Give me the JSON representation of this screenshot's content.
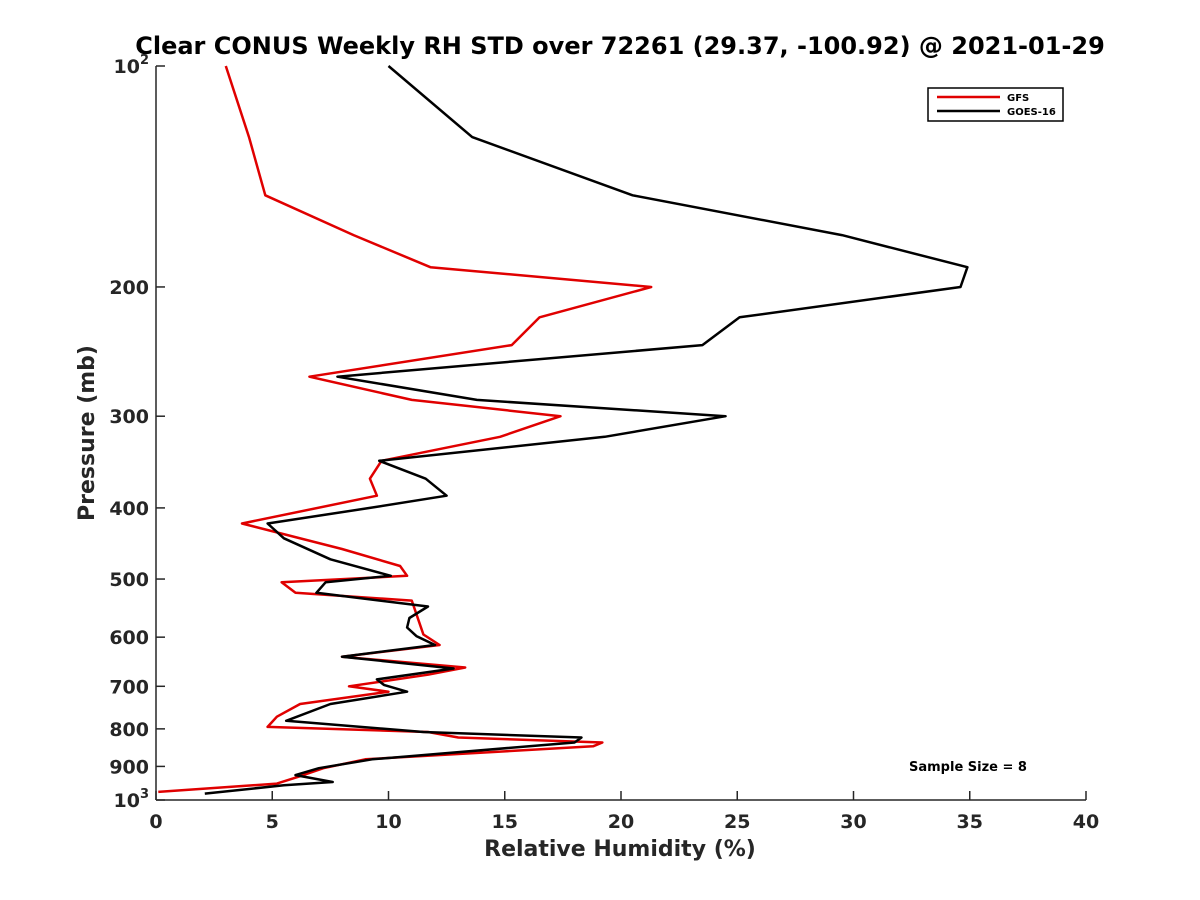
{
  "chart_data": {
    "type": "line",
    "title": "Clear CONUS Weekly RH STD over 72261 (29.37, -100.92) @ 2021-01-29",
    "xlabel": "Relative Humidity (%)",
    "ylabel": "Pressure (mb)",
    "xlim": [
      0,
      40
    ],
    "ylim": [
      100,
      1000
    ],
    "y_scale": "log",
    "y_reversed": true,
    "x_ticks": [
      "0",
      "5",
      "10",
      "15",
      "20",
      "25",
      "30",
      "35",
      "40"
    ],
    "y_ticks": [
      {
        "value": 100,
        "base": "10",
        "exp": "2"
      },
      {
        "value": 200,
        "label": "200"
      },
      {
        "value": 300,
        "label": "300"
      },
      {
        "value": 400,
        "label": "400"
      },
      {
        "value": 500,
        "label": "500"
      },
      {
        "value": 600,
        "label": "600"
      },
      {
        "value": 700,
        "label": "700"
      },
      {
        "value": 800,
        "label": "800"
      },
      {
        "value": 900,
        "label": "900"
      },
      {
        "value": 1000,
        "base": "10",
        "exp": "3"
      }
    ],
    "legend_position": "top-right",
    "annotation": "Sample Size = 8",
    "series": [
      {
        "name": "GFS",
        "color": "#e00000",
        "points": [
          [
            3.0,
            100
          ],
          [
            4.0,
            125
          ],
          [
            4.7,
            150
          ],
          [
            8.5,
            170
          ],
          [
            11.8,
            188
          ],
          [
            21.3,
            200
          ],
          [
            16.5,
            220
          ],
          [
            15.3,
            240
          ],
          [
            6.6,
            265
          ],
          [
            11.0,
            285
          ],
          [
            17.4,
            300
          ],
          [
            14.8,
            320
          ],
          [
            9.7,
            345
          ],
          [
            9.2,
            365
          ],
          [
            9.5,
            385
          ],
          [
            3.7,
            420
          ],
          [
            8.0,
            455
          ],
          [
            10.5,
            480
          ],
          [
            10.8,
            495
          ],
          [
            5.4,
            505
          ],
          [
            6.0,
            522
          ],
          [
            11.0,
            535
          ],
          [
            11.3,
            570
          ],
          [
            11.5,
            595
          ],
          [
            12.2,
            615
          ],
          [
            8.0,
            638
          ],
          [
            13.3,
            660
          ],
          [
            11.7,
            675
          ],
          [
            8.3,
            700
          ],
          [
            10.0,
            712
          ],
          [
            6.2,
            740
          ],
          [
            5.2,
            770
          ],
          [
            4.8,
            795
          ],
          [
            11.7,
            808
          ],
          [
            13.0,
            822
          ],
          [
            19.2,
            835
          ],
          [
            18.8,
            845
          ],
          [
            9.0,
            880
          ],
          [
            7.2,
            905
          ],
          [
            6.1,
            930
          ],
          [
            5.2,
            950
          ],
          [
            0.1,
            975
          ]
        ]
      },
      {
        "name": "GOES-16",
        "color": "#000000",
        "points": [
          [
            10.0,
            100
          ],
          [
            13.6,
            125
          ],
          [
            20.5,
            150
          ],
          [
            29.5,
            170
          ],
          [
            34.9,
            188
          ],
          [
            34.6,
            200
          ],
          [
            25.1,
            220
          ],
          [
            23.5,
            240
          ],
          [
            7.8,
            265
          ],
          [
            13.8,
            285
          ],
          [
            24.5,
            300
          ],
          [
            19.3,
            320
          ],
          [
            9.6,
            345
          ],
          [
            11.6,
            365
          ],
          [
            12.5,
            385
          ],
          [
            9.2,
            400
          ],
          [
            4.8,
            420
          ],
          [
            5.5,
            440
          ],
          [
            7.5,
            470
          ],
          [
            10.1,
            495
          ],
          [
            7.3,
            505
          ],
          [
            6.9,
            522
          ],
          [
            11.7,
            545
          ],
          [
            10.9,
            565
          ],
          [
            10.8,
            582
          ],
          [
            11.2,
            598
          ],
          [
            12.0,
            615
          ],
          [
            8.0,
            638
          ],
          [
            12.8,
            662
          ],
          [
            9.5,
            685
          ],
          [
            9.8,
            697
          ],
          [
            10.8,
            712
          ],
          [
            7.5,
            740
          ],
          [
            5.6,
            780
          ],
          [
            11.5,
            808
          ],
          [
            18.3,
            822
          ],
          [
            18.0,
            835
          ],
          [
            9.3,
            880
          ],
          [
            7.0,
            905
          ],
          [
            6.0,
            925
          ],
          [
            7.6,
            945
          ],
          [
            5.5,
            955
          ],
          [
            2.1,
            980
          ]
        ]
      }
    ]
  }
}
